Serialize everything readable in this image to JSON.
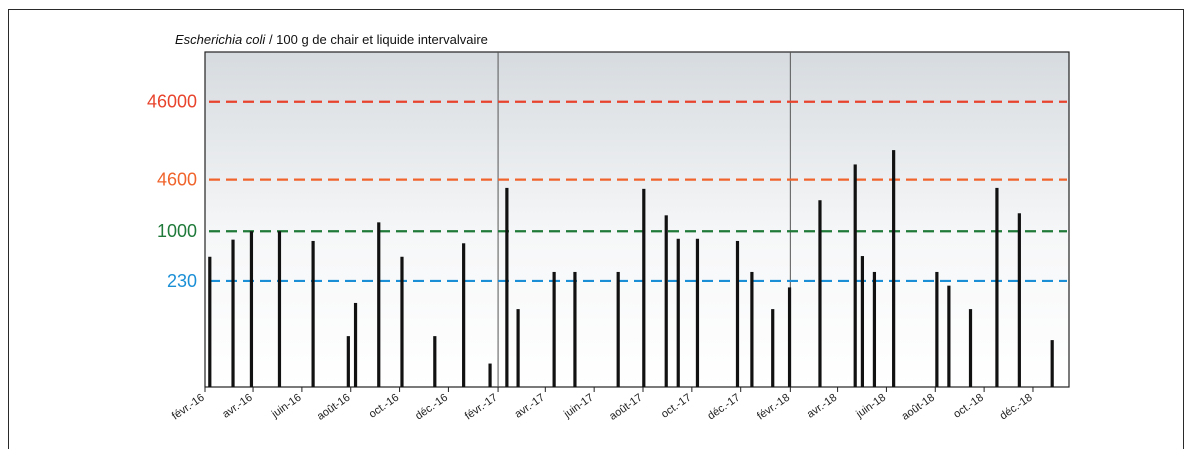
{
  "chart_data": {
    "type": "bar",
    "title_italic": "Escherichia coli",
    "title_rest": " / 100 g de chair et liquide intervalvaire",
    "xlabel": "",
    "ylabel": "",
    "y_scale": "log",
    "ylim": [
      10,
      200000
    ],
    "x_start": "2016-02-01",
    "x_end": "2019-01-15",
    "x_ticks": [
      {
        "date": "2016-02-01",
        "label": "févr.-16"
      },
      {
        "date": "2016-04-01",
        "label": "avr.-16"
      },
      {
        "date": "2016-06-01",
        "label": "juin-16"
      },
      {
        "date": "2016-08-01",
        "label": "août-16"
      },
      {
        "date": "2016-10-01",
        "label": "oct.-16"
      },
      {
        "date": "2016-12-01",
        "label": "déc.-16"
      },
      {
        "date": "2017-02-01",
        "label": "févr.-17"
      },
      {
        "date": "2017-04-01",
        "label": "avr.-17"
      },
      {
        "date": "2017-06-01",
        "label": "juin-17"
      },
      {
        "date": "2017-08-01",
        "label": "août-17"
      },
      {
        "date": "2017-10-01",
        "label": "oct.-17"
      },
      {
        "date": "2017-12-01",
        "label": "déc.-17"
      },
      {
        "date": "2018-02-01",
        "label": "févr.-18"
      },
      {
        "date": "2018-04-01",
        "label": "avr.-18"
      },
      {
        "date": "2018-06-01",
        "label": "juin-18"
      },
      {
        "date": "2018-08-01",
        "label": "août-18"
      },
      {
        "date": "2018-10-01",
        "label": "oct.-18"
      },
      {
        "date": "2018-12-01",
        "label": "déc.-18"
      }
    ],
    "year_separators": [
      "2017-02-01",
      "2018-02-01"
    ],
    "thresholds": [
      {
        "label": "46000",
        "value": 46000,
        "color": "#e8432c"
      },
      {
        "label": "4600",
        "value": 4600,
        "color": "#f0642c"
      },
      {
        "label": "1000",
        "value": 1000,
        "color": "#1f7a3a"
      },
      {
        "label": "230",
        "value": 230,
        "color": "#1b8fd6"
      }
    ],
    "points": [
      {
        "date": "2016-02-07",
        "value": 470
      },
      {
        "date": "2016-03-07",
        "value": 780
      },
      {
        "date": "2016-03-30",
        "value": 1000
      },
      {
        "date": "2016-05-04",
        "value": 1000
      },
      {
        "date": "2016-06-15",
        "value": 750
      },
      {
        "date": "2016-07-29",
        "value": 45
      },
      {
        "date": "2016-08-07",
        "value": 120
      },
      {
        "date": "2016-09-05",
        "value": 1300
      },
      {
        "date": "2016-10-04",
        "value": 470
      },
      {
        "date": "2016-11-14",
        "value": 45
      },
      {
        "date": "2016-12-20",
        "value": 700
      },
      {
        "date": "2017-01-22",
        "value": 20
      },
      {
        "date": "2017-02-12",
        "value": 3600
      },
      {
        "date": "2017-02-26",
        "value": 100
      },
      {
        "date": "2017-04-12",
        "value": 300
      },
      {
        "date": "2017-05-08",
        "value": 300
      },
      {
        "date": "2017-07-01",
        "value": 300
      },
      {
        "date": "2017-08-02",
        "value": 3500
      },
      {
        "date": "2017-08-30",
        "value": 1600
      },
      {
        "date": "2017-09-14",
        "value": 800
      },
      {
        "date": "2017-10-08",
        "value": 800
      },
      {
        "date": "2017-11-27",
        "value": 750
      },
      {
        "date": "2017-12-15",
        "value": 300
      },
      {
        "date": "2018-01-10",
        "value": 100
      },
      {
        "date": "2018-01-31",
        "value": 190
      },
      {
        "date": "2018-03-10",
        "value": 2500
      },
      {
        "date": "2018-04-23",
        "value": 7200
      },
      {
        "date": "2018-05-02",
        "value": 480
      },
      {
        "date": "2018-05-17",
        "value": 300
      },
      {
        "date": "2018-06-10",
        "value": 11000
      },
      {
        "date": "2018-08-03",
        "value": 300
      },
      {
        "date": "2018-08-18",
        "value": 200
      },
      {
        "date": "2018-09-14",
        "value": 100
      },
      {
        "date": "2018-10-17",
        "value": 3600
      },
      {
        "date": "2018-11-14",
        "value": 1700
      },
      {
        "date": "2018-12-25",
        "value": 40
      }
    ],
    "colors": {
      "bar": "#111111",
      "plot_bg_top": "#d6dbdf",
      "plot_bg_bottom": "#ffffff",
      "separator": "#555555"
    }
  }
}
